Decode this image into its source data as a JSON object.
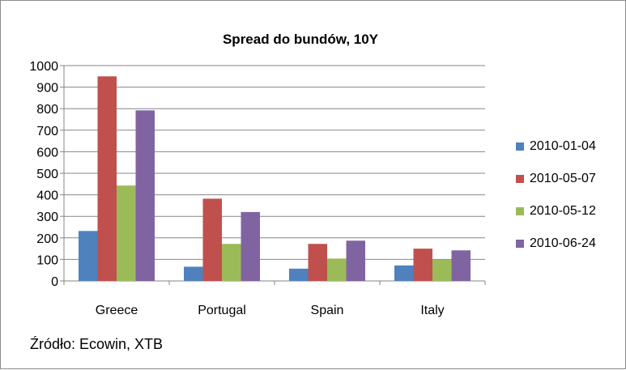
{
  "chart_data": {
    "type": "bar",
    "title": "Spread do bundów, 10Y",
    "categories": [
      "Greece",
      "Portugal",
      "Spain",
      "Italy"
    ],
    "series": [
      {
        "name": "2010-01-04",
        "color": "#4f81bd",
        "values": [
          232,
          66,
          57,
          72
        ]
      },
      {
        "name": "2010-05-07",
        "color": "#c0504d",
        "values": [
          950,
          382,
          172,
          150
        ]
      },
      {
        "name": "2010-05-12",
        "color": "#9bbb59",
        "values": [
          443,
          172,
          104,
          99
        ]
      },
      {
        "name": "2010-06-24",
        "color": "#8064a2",
        "values": [
          792,
          320,
          187,
          142
        ]
      }
    ],
    "ylim": [
      0,
      1000
    ],
    "yticks": [
      "0",
      "100",
      "200",
      "300",
      "400",
      "500",
      "600",
      "700",
      "800",
      "900",
      "1000"
    ],
    "grid": true,
    "legend_position": "right"
  },
  "source_note": "Źródło: Ecowin, XTB"
}
